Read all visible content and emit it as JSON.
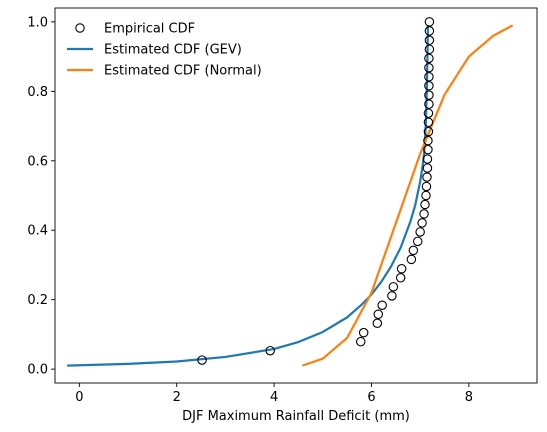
{
  "chart_data": {
    "type": "line",
    "xlabel": "DJF Maximum Rainfall Deficit (mm)",
    "ylabel": "",
    "xlim": [
      -0.5,
      9.4
    ],
    "ylim": [
      -0.04,
      1.04
    ],
    "xticks": [
      0,
      2,
      4,
      6,
      8
    ],
    "yticks": [
      0.0,
      0.2,
      0.4,
      0.6,
      0.8,
      1.0
    ],
    "xtick_labels": [
      "0",
      "2",
      "4",
      "6",
      "8"
    ],
    "ytick_labels": [
      "0.0",
      "0.2",
      "0.4",
      "0.6",
      "0.8",
      "1.0"
    ],
    "grid": false,
    "legend_position": "top-left",
    "series": [
      {
        "name": "Empirical CDF",
        "kind": "scatter",
        "marker": "open-circle",
        "color": "#000000",
        "x": [
          2.52,
          3.92,
          5.78,
          5.84,
          6.12,
          6.14,
          6.22,
          6.42,
          6.45,
          6.6,
          6.62,
          6.82,
          6.86,
          6.95,
          7.0,
          7.04,
          7.08,
          7.1,
          7.12,
          7.13,
          7.14,
          7.15,
          7.15,
          7.16,
          7.16,
          7.17,
          7.17,
          7.17,
          7.18,
          7.18,
          7.18,
          7.18,
          7.18,
          7.18,
          7.19,
          7.19,
          7.19,
          7.19
        ],
        "y": [
          0.026,
          0.053,
          0.079,
          0.105,
          0.132,
          0.158,
          0.184,
          0.211,
          0.237,
          0.263,
          0.289,
          0.316,
          0.342,
          0.368,
          0.395,
          0.421,
          0.447,
          0.474,
          0.5,
          0.526,
          0.553,
          0.579,
          0.605,
          0.632,
          0.658,
          0.684,
          0.711,
          0.737,
          0.763,
          0.789,
          0.816,
          0.842,
          0.868,
          0.895,
          0.921,
          0.947,
          0.974,
          1.0
        ]
      },
      {
        "name": "Estimated CDF (GEV)",
        "kind": "line",
        "color": "#1f77b4",
        "x": [
          -0.25,
          1.0,
          2.0,
          3.0,
          4.0,
          4.5,
          5.0,
          5.5,
          5.8,
          6.0,
          6.2,
          6.4,
          6.6,
          6.8,
          6.9,
          7.0,
          7.05,
          7.08,
          7.1,
          7.12,
          7.14,
          7.16
        ],
        "y": [
          0.01,
          0.015,
          0.022,
          0.035,
          0.058,
          0.078,
          0.107,
          0.149,
          0.186,
          0.215,
          0.251,
          0.295,
          0.35,
          0.425,
          0.473,
          0.54,
          0.585,
          0.62,
          0.655,
          0.72,
          0.82,
          0.99
        ]
      },
      {
        "name": "Estimated CDF (Normal)",
        "kind": "line",
        "color": "#ff7f0e",
        "x": [
          4.58,
          5.0,
          5.5,
          6.0,
          6.5,
          7.0,
          7.5,
          8.0,
          8.5,
          8.9
        ],
        "y": [
          0.01,
          0.03,
          0.09,
          0.22,
          0.42,
          0.62,
          0.79,
          0.9,
          0.96,
          0.99
        ]
      }
    ]
  }
}
